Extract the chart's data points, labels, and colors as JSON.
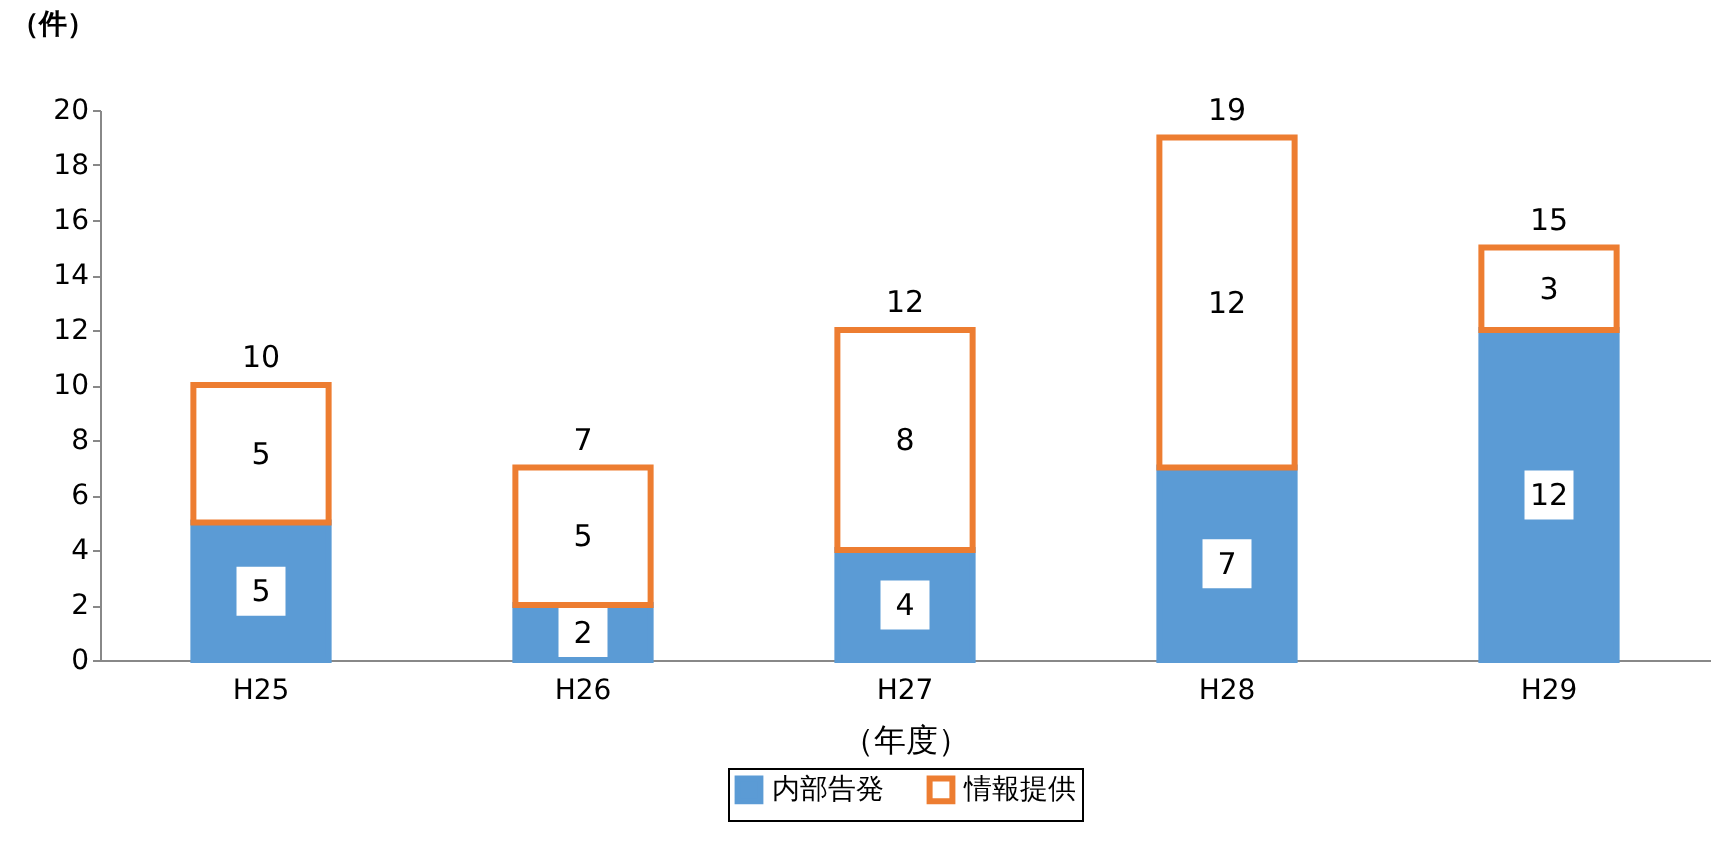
{
  "chart_data": {
    "type": "bar",
    "stacked": true,
    "xlabel": "（年度）",
    "ylabel": "（件）",
    "categories": [
      "H25",
      "H26",
      "H27",
      "H28",
      "H29"
    ],
    "series": [
      {
        "name": "内部告発",
        "color": "#5b9bd5",
        "values": [
          5,
          2,
          4,
          7,
          12
        ]
      },
      {
        "name": "情報提供",
        "color": "#ed7d31",
        "values": [
          5,
          5,
          8,
          12,
          3
        ]
      }
    ],
    "totals": [
      "10",
      "7",
      "12",
      "19",
      "15"
    ],
    "data_labels": true,
    "ylim": [
      0,
      20
    ],
    "yticks": [
      0,
      2,
      4,
      6,
      8,
      10,
      12,
      14,
      16,
      18,
      20
    ],
    "grid": false,
    "legend": "bottom"
  }
}
